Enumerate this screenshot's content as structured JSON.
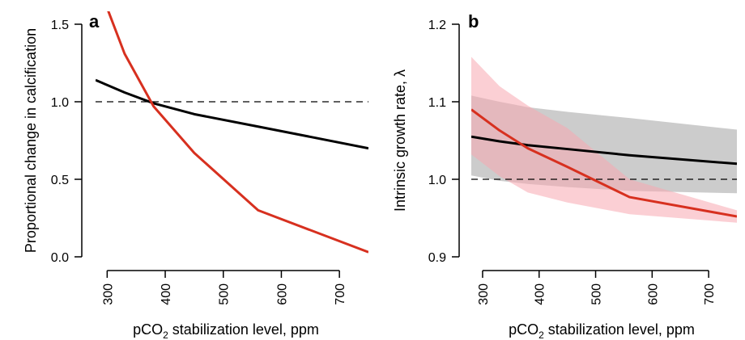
{
  "figure": {
    "colors": {
      "black": "#000000",
      "red": "#d7301f",
      "red_band": "#f7a8b0",
      "grey_band": "#9a9a9a"
    }
  },
  "chart_data": [
    {
      "panel_label": "a",
      "type": "line",
      "ylabel": "Proportional change in calcification",
      "xlabel_main": "pCO",
      "xlabel_sub": "2",
      "xlabel_rest": " stabilization level, ppm",
      "xlim": [
        280,
        750
      ],
      "ylim": [
        0,
        1.5
      ],
      "xticks": [
        300,
        400,
        500,
        600,
        700
      ],
      "yticks": [
        0.0,
        0.5,
        1.0,
        1.5
      ],
      "ytick_labels": [
        "0.0",
        "0.5",
        "1.0",
        "1.5"
      ],
      "reference_line": 1.0,
      "series": [
        {
          "color": "#000000",
          "x": [
            280,
            330,
            380,
            450,
            560,
            750
          ],
          "y": [
            1.14,
            1.06,
            0.99,
            0.92,
            0.84,
            0.7
          ]
        },
        {
          "color": "#d7301f",
          "x": [
            280,
            330,
            380,
            450,
            560,
            750
          ],
          "y": [
            1.8,
            1.31,
            0.97,
            0.67,
            0.3,
            0.03
          ]
        }
      ]
    },
    {
      "panel_label": "b",
      "type": "line",
      "ylabel_main": "Intrinsic growth rate, ",
      "ylabel_symbol": "λ",
      "xlabel_main": "pCO",
      "xlabel_sub": "2",
      "xlabel_rest": " stabilization level, ppm",
      "xlim": [
        280,
        750
      ],
      "ylim": [
        0.9,
        1.2
      ],
      "xticks": [
        300,
        400,
        500,
        600,
        700
      ],
      "yticks": [
        0.9,
        1.0,
        1.1,
        1.2
      ],
      "ytick_labels": [
        "0.9",
        "1.0",
        "1.1",
        "1.2"
      ],
      "reference_line": 1.0,
      "series": [
        {
          "color": "#000000",
          "x": [
            280,
            330,
            380,
            450,
            560,
            750
          ],
          "y": [
            1.055,
            1.049,
            1.044,
            1.039,
            1.031,
            1.02
          ],
          "band_color": "#9a9a9a",
          "lower": [
            1.005,
            0.998,
            0.994,
            0.99,
            0.985,
            0.982
          ],
          "upper": [
            1.108,
            1.1,
            1.093,
            1.087,
            1.079,
            1.064
          ]
        },
        {
          "color": "#d7301f",
          "x": [
            280,
            330,
            380,
            450,
            560,
            750
          ],
          "y": [
            1.09,
            1.063,
            1.04,
            1.016,
            0.977,
            0.952
          ],
          "band_color": "#f7a8b0",
          "lower": [
            1.032,
            1.004,
            0.983,
            0.97,
            0.955,
            0.944
          ],
          "upper": [
            1.158,
            1.12,
            1.095,
            1.066,
            1.0,
            0.96
          ]
        }
      ]
    }
  ]
}
